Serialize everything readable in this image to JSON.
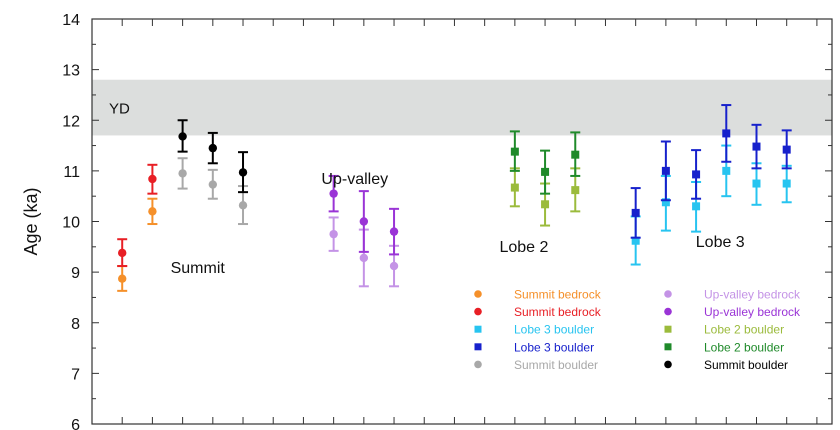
{
  "chart_data": {
    "type": "scatter",
    "ylabel": "Age (ka)",
    "ylim": [
      6,
      14
    ],
    "yticks": [
      6,
      7,
      8,
      9,
      10,
      11,
      12,
      13,
      14
    ],
    "xlim": [
      0,
      24.5
    ],
    "xticks_labeled": false,
    "grid": false,
    "legend_position": "bottom-right",
    "band": {
      "label": "YD",
      "y0": 11.7,
      "y1": 12.8,
      "color": "#dcdedd"
    },
    "annotations": [
      {
        "text": "Summit",
        "x": 3.5,
        "y": 8.98
      },
      {
        "text": "Up-valley",
        "x": 8.7,
        "y": 10.74
      },
      {
        "text": "Lobe 2",
        "x": 14.3,
        "y": 9.4
      },
      {
        "text": "Lobe 3",
        "x": 20.8,
        "y": 9.5
      }
    ],
    "series": [
      {
        "name": "Summit bedrock",
        "color": "#f5902a",
        "marker": "circle",
        "points": [
          {
            "x": 1,
            "y": 8.87,
            "lo": 8.63,
            "hi": 9.12
          },
          {
            "x": 2,
            "y": 10.2,
            "lo": 9.95,
            "hi": 10.45
          }
        ]
      },
      {
        "name": "Summit bedrock",
        "color": "#e81f25",
        "marker": "circle",
        "points": [
          {
            "x": 1,
            "y": 9.38,
            "lo": 9.12,
            "hi": 9.65
          },
          {
            "x": 2,
            "y": 10.84,
            "lo": 10.55,
            "hi": 11.12
          }
        ]
      },
      {
        "name": "Lobe 3 boulder",
        "color": "#27c4f0",
        "marker": "square",
        "points": [
          {
            "x": 18,
            "y": 9.62,
            "lo": 9.15,
            "hi": 10.1
          },
          {
            "x": 19,
            "y": 10.38,
            "lo": 9.82,
            "hi": 10.9
          },
          {
            "x": 20,
            "y": 10.3,
            "lo": 9.8,
            "hi": 10.78
          },
          {
            "x": 21,
            "y": 11.0,
            "lo": 10.5,
            "hi": 11.5
          },
          {
            "x": 22,
            "y": 10.75,
            "lo": 10.33,
            "hi": 11.15
          },
          {
            "x": 23,
            "y": 10.75,
            "lo": 10.38,
            "hi": 11.1
          }
        ]
      },
      {
        "name": "Lobe 3 boulder",
        "color": "#1721cc",
        "marker": "square",
        "points": [
          {
            "x": 18,
            "y": 10.17,
            "lo": 9.68,
            "hi": 10.66
          },
          {
            "x": 19,
            "y": 11.0,
            "lo": 10.42,
            "hi": 11.58
          },
          {
            "x": 20,
            "y": 10.93,
            "lo": 10.45,
            "hi": 11.41
          },
          {
            "x": 21,
            "y": 11.74,
            "lo": 11.18,
            "hi": 12.3
          },
          {
            "x": 22,
            "y": 11.48,
            "lo": 11.05,
            "hi": 11.91
          },
          {
            "x": 23,
            "y": 11.42,
            "lo": 11.05,
            "hi": 11.8
          }
        ]
      },
      {
        "name": "Up-valley bedrock",
        "color": "#c493e6",
        "marker": "circle",
        "points": [
          {
            "x": 8,
            "y": 9.75,
            "lo": 9.42,
            "hi": 10.08
          },
          {
            "x": 9,
            "y": 9.28,
            "lo": 8.72,
            "hi": 9.84
          },
          {
            "x": 10,
            "y": 9.12,
            "lo": 8.72,
            "hi": 9.52
          }
        ]
      },
      {
        "name": "Up-valley bedrock",
        "color": "#9a34d6",
        "marker": "circle",
        "points": [
          {
            "x": 8,
            "y": 10.55,
            "lo": 10.2,
            "hi": 10.9
          },
          {
            "x": 9,
            "y": 10.0,
            "lo": 9.4,
            "hi": 10.6
          },
          {
            "x": 10,
            "y": 9.8,
            "lo": 9.35,
            "hi": 10.25
          }
        ]
      },
      {
        "name": "Lobe 2 boulder",
        "color": "#9bbb3c",
        "marker": "square",
        "points": [
          {
            "x": 14,
            "y": 10.67,
            "lo": 10.3,
            "hi": 11.05
          },
          {
            "x": 15,
            "y": 10.34,
            "lo": 9.92,
            "hi": 10.75
          },
          {
            "x": 16,
            "y": 10.62,
            "lo": 10.2,
            "hi": 11.05
          }
        ]
      },
      {
        "name": "Lobe 2 boulder",
        "color": "#1f8a2a",
        "marker": "square",
        "points": [
          {
            "x": 14,
            "y": 11.38,
            "lo": 11.0,
            "hi": 11.78
          },
          {
            "x": 15,
            "y": 10.98,
            "lo": 10.55,
            "hi": 11.4
          },
          {
            "x": 16,
            "y": 11.32,
            "lo": 10.9,
            "hi": 11.76
          }
        ]
      },
      {
        "name": "Summit boulder",
        "color": "#a8a8a8",
        "marker": "circle",
        "points": [
          {
            "x": 3,
            "y": 10.95,
            "lo": 10.65,
            "hi": 11.25
          },
          {
            "x": 4,
            "y": 10.73,
            "lo": 10.45,
            "hi": 11.02
          },
          {
            "x": 5,
            "y": 10.32,
            "lo": 9.95,
            "hi": 10.7
          }
        ]
      },
      {
        "name": "Summit boulder",
        "color": "#000000",
        "marker": "circle",
        "points": [
          {
            "x": 3,
            "y": 11.68,
            "lo": 11.38,
            "hi": 12.0
          },
          {
            "x": 4,
            "y": 11.45,
            "lo": 11.15,
            "hi": 11.75
          },
          {
            "x": 5,
            "y": 10.97,
            "lo": 10.58,
            "hi": 11.37
          }
        ]
      }
    ],
    "legend_order": [
      0,
      4,
      1,
      5,
      2,
      6,
      3,
      7,
      8,
      9
    ]
  }
}
